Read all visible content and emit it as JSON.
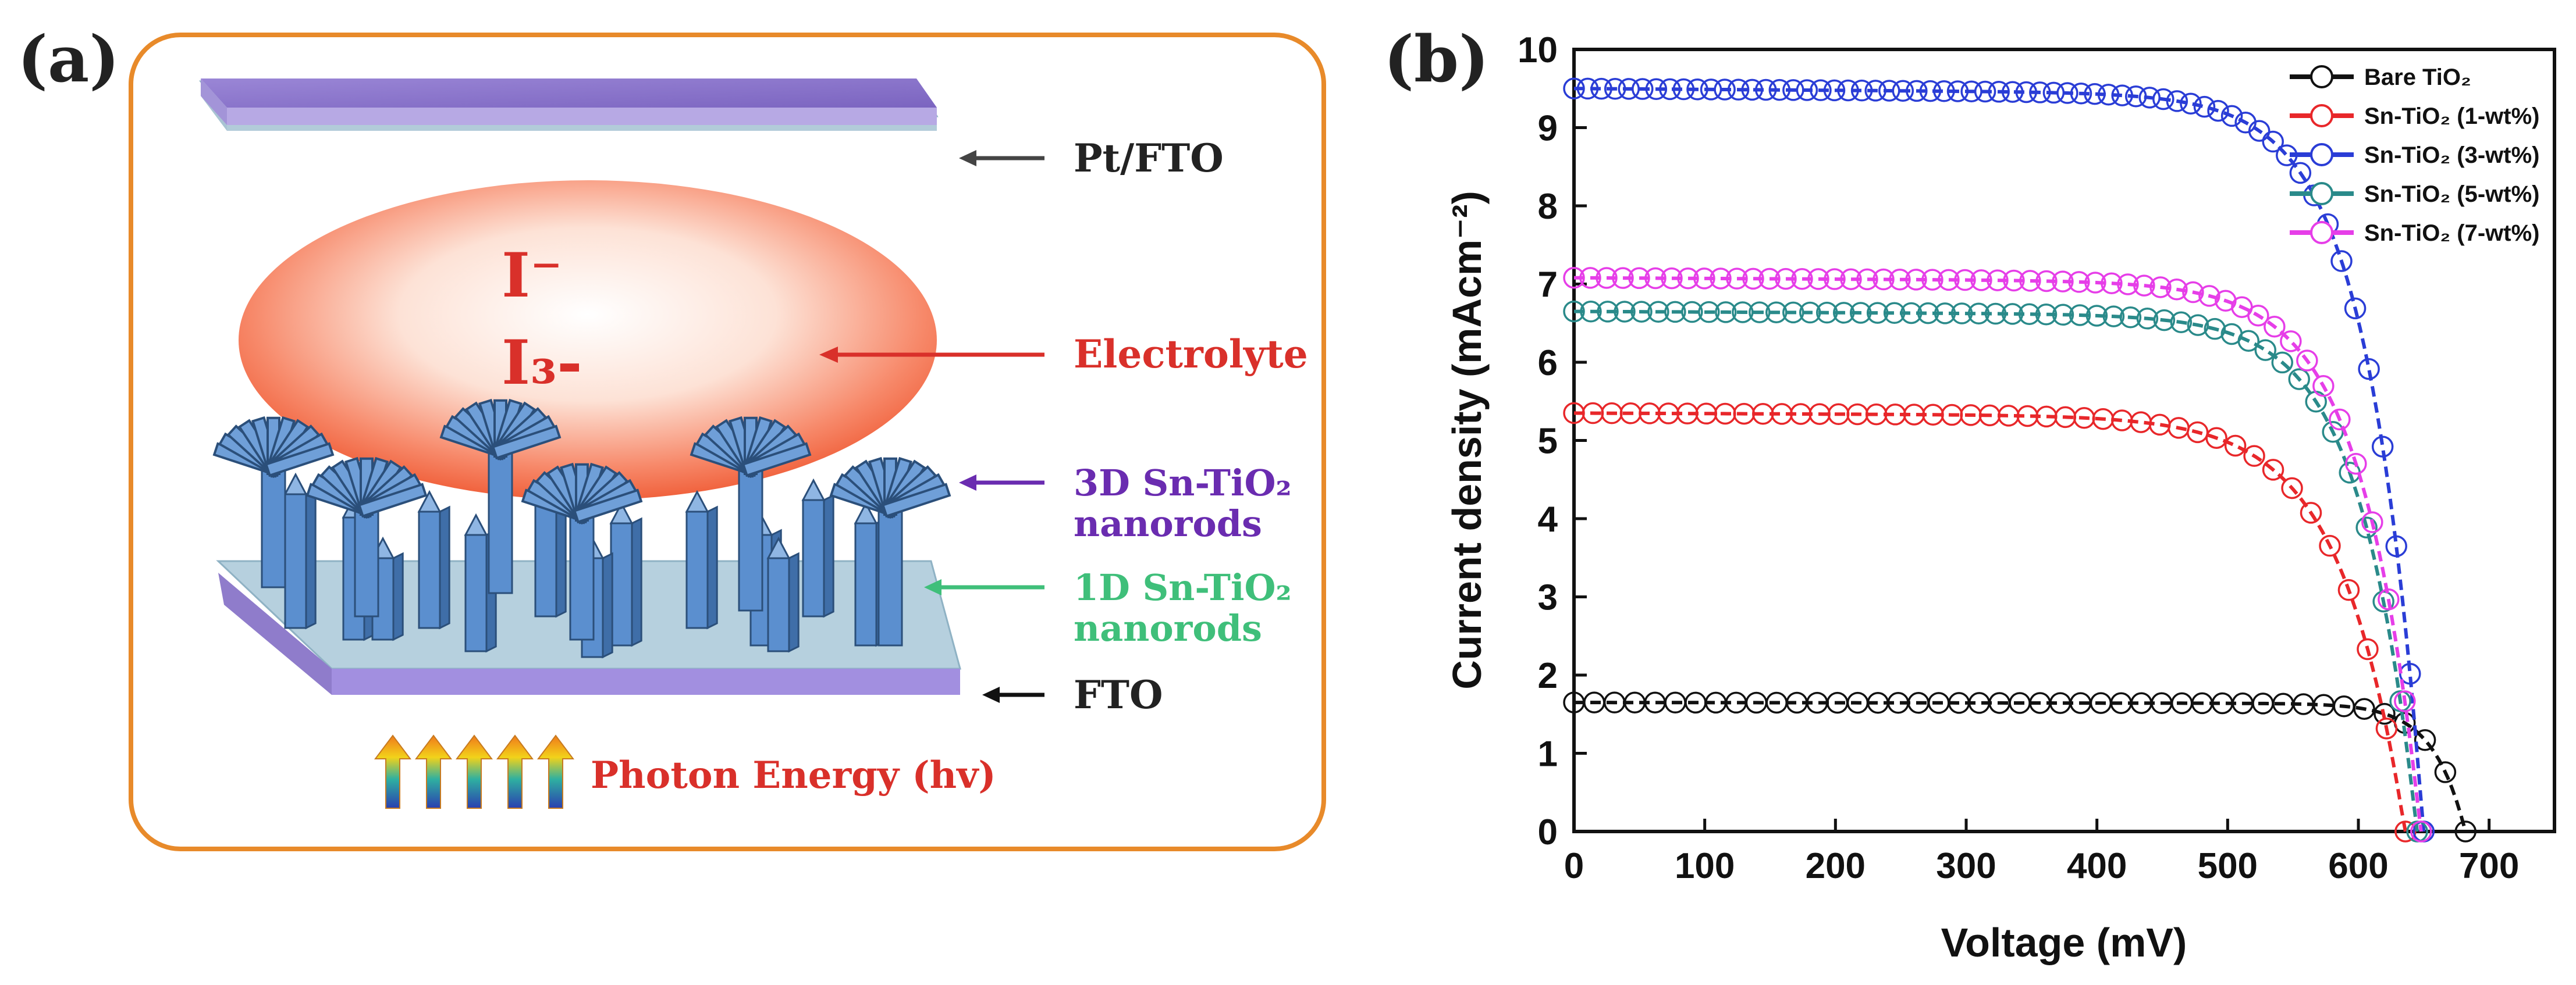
{
  "panel_a": {
    "label": "(a)",
    "ion1": "I⁻",
    "ion2": "I₃-",
    "labels": {
      "pt_fto": "Pt/FTO",
      "electrolyte": "Electrolyte",
      "nanorods_3d_line1": "3D Sn-TiO₂",
      "nanorods_3d_line2": "nanorods",
      "nanorods_1d_line1": "1D Sn-TiO₂",
      "nanorods_1d_line2": "nanorods",
      "fto": "FTO",
      "photon": "Photon Energy (hv)"
    },
    "colors": {
      "frame": "#e88a2a",
      "top_plate": "#8b78c8",
      "bottom_plate": "#9a84d2",
      "glass": "#b6d0de",
      "electrolyte": "#f26a4a",
      "rod": "#5b8fcf",
      "text_red": "#d9302a",
      "text_purple": "#6a2cb0",
      "text_green": "#3fbf7a"
    }
  },
  "panel_b": {
    "label": "(b)"
  },
  "chart_data": {
    "type": "scatter",
    "xlabel": "Voltage (mV)",
    "ylabel": "Current density (mAcm⁻²)",
    "xlim": [
      0,
      750
    ],
    "ylim": [
      0,
      10
    ],
    "xticks": [
      0,
      100,
      200,
      300,
      400,
      500,
      600,
      700
    ],
    "yticks": [
      0,
      1,
      2,
      3,
      4,
      5,
      6,
      7,
      8,
      9,
      10
    ],
    "legend_position": "top-right",
    "series": [
      {
        "name": "Bare TiO₂",
        "color": "#111111",
        "jsc": 1.65,
        "voc": 682,
        "knee": 560,
        "n": 44
      },
      {
        "name": "Sn-TiO₂ (1-wt%)",
        "color": "#e8272a",
        "jsc": 5.35,
        "voc": 636,
        "knee": 390,
        "n": 44
      },
      {
        "name": "Sn-TiO₂ (3-wt%)",
        "color": "#2a3dd6",
        "jsc": 9.5,
        "voc": 650,
        "knee": 440,
        "n": 62
      },
      {
        "name": "Sn-TiO₂ (5-wt%)",
        "color": "#2a8a8a",
        "jsc": 6.65,
        "voc": 645,
        "knee": 430,
        "n": 50
      },
      {
        "name": "Sn-TiO₂ (7-wt%)",
        "color": "#e63ee8",
        "jsc": 7.08,
        "voc": 648,
        "knee": 425,
        "n": 52
      }
    ]
  }
}
